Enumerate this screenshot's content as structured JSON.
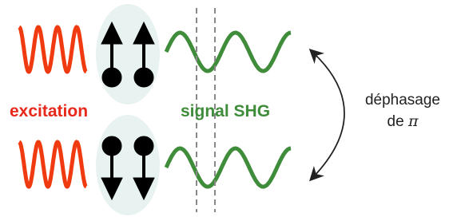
{
  "labels": {
    "excitation": "excitation",
    "signal": "signal SHG",
    "phase_line1": "déphasage",
    "phase_line2_prefix": "de",
    "phase_line2_symbol": "π"
  }
}
